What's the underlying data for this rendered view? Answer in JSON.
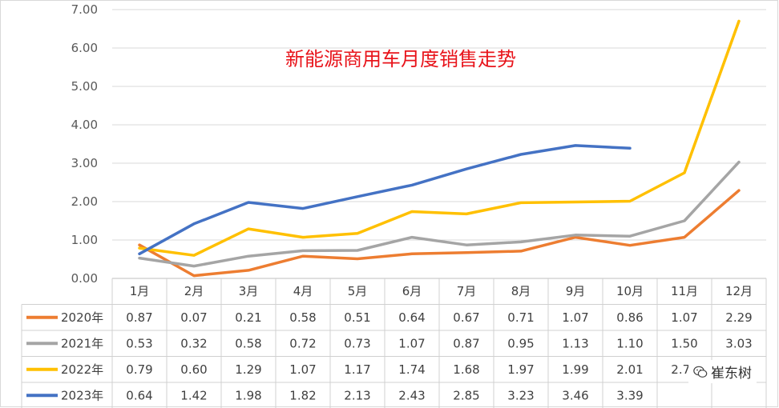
{
  "chart_data": {
    "type": "line",
    "title": "新能源商用车月度销售走势",
    "categories": [
      "1月",
      "2月",
      "3月",
      "4月",
      "5月",
      "6月",
      "7月",
      "8月",
      "9月",
      "10月",
      "11月",
      "12月"
    ],
    "ylim": [
      0,
      7
    ],
    "yticks": [
      "0.00",
      "1.00",
      "2.00",
      "3.00",
      "4.00",
      "5.00",
      "6.00",
      "7.00"
    ],
    "grid": "horizontal",
    "legend": "data-table",
    "series": [
      {
        "name": "2020年",
        "color": "#ed7d31",
        "values": [
          0.87,
          0.07,
          0.21,
          0.58,
          0.51,
          0.64,
          0.67,
          0.71,
          1.07,
          0.86,
          1.07,
          2.29
        ],
        "labels": [
          "0.87",
          "0.07",
          "0.21",
          "0.58",
          "0.51",
          "0.64",
          "0.67",
          "0.71",
          "1.07",
          "0.86",
          "1.07",
          "2.29"
        ]
      },
      {
        "name": "2021年",
        "color": "#a5a5a5",
        "values": [
          0.53,
          0.32,
          0.58,
          0.72,
          0.73,
          1.07,
          0.87,
          0.95,
          1.13,
          1.1,
          1.5,
          3.03
        ],
        "labels": [
          "0.53",
          "0.32",
          "0.58",
          "0.72",
          "0.73",
          "1.07",
          "0.87",
          "0.95",
          "1.13",
          "1.10",
          "1.50",
          "3.03"
        ]
      },
      {
        "name": "2022年",
        "color": "#ffc000",
        "values": [
          0.79,
          0.6,
          1.29,
          1.07,
          1.17,
          1.74,
          1.68,
          1.97,
          1.99,
          2.01,
          2.75,
          6.7
        ],
        "labels": [
          "0.79",
          "0.60",
          "1.29",
          "1.07",
          "1.17",
          "1.74",
          "1.68",
          "1.97",
          "1.99",
          "2.01",
          "2.75",
          ""
        ]
      },
      {
        "name": "2023年",
        "color": "#4472c4",
        "values": [
          0.64,
          1.42,
          1.98,
          1.82,
          2.13,
          2.43,
          2.85,
          3.23,
          3.46,
          3.39,
          null,
          null
        ],
        "labels": [
          "0.64",
          "1.42",
          "1.98",
          "1.82",
          "2.13",
          "2.43",
          "2.85",
          "3.23",
          "3.46",
          "3.39",
          "",
          ""
        ]
      }
    ]
  },
  "watermark": {
    "text": "崔东树",
    "icon": "wechat-icon"
  }
}
